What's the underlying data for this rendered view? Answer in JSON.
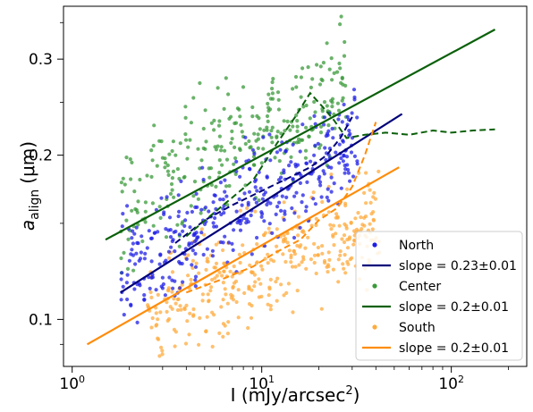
{
  "chart_data": {
    "type": "scatter",
    "xlabel": "I (mJy/arcsec",
    "xlabel_sup": "2",
    "xlabel_close": ")",
    "ylabel": "a",
    "ylabel_sub": "align",
    "ylabel_unit": "(μm)",
    "xscale": "log",
    "yscale": "log",
    "xlim": [
      0.9,
      250
    ],
    "ylim": [
      0.082,
      0.375
    ],
    "x_ticks": [
      {
        "value": 1,
        "label": "10",
        "exp": "0"
      },
      {
        "value": 10,
        "label": "10",
        "exp": "1"
      },
      {
        "value": 100,
        "label": "10",
        "exp": "2"
      }
    ],
    "y_ticks": [
      {
        "value": 0.1,
        "label": "0.1"
      },
      {
        "value": 0.2,
        "label": "0.2"
      },
      {
        "value": 0.3,
        "label": "0.3"
      }
    ],
    "grid": false,
    "legend_position": "lower-right",
    "series": [
      {
        "name": "North",
        "color": "#1f1fe6",
        "fit_label": "slope = 0.23±0.01",
        "fit_color": "#00007a",
        "fit_x": [
          1.8,
          55
        ],
        "fit_y": [
          0.112,
          0.238
        ],
        "binned_x": [
          3.5,
          5,
          7,
          10,
          14,
          18,
          22,
          26,
          30
        ],
        "binned_y": [
          0.138,
          0.152,
          0.162,
          0.172,
          0.182,
          0.19,
          0.2,
          0.215,
          0.235
        ],
        "cloud": {
          "x_range": [
            1.8,
            32
          ],
          "center_y": [
            0.12,
            0.215
          ],
          "spread": 0.14,
          "count": 380
        }
      },
      {
        "name": "Center",
        "color": "#3a9a3a",
        "fit_label": "slope = 0.2±0.01",
        "fit_color": "#0a600a",
        "fit_x": [
          1.5,
          170
        ],
        "fit_y": [
          0.14,
          0.34
        ],
        "binned_x": [
          4,
          6,
          9,
          12,
          15,
          18,
          21,
          24,
          28,
          35,
          45,
          60,
          80,
          100,
          130,
          170
        ],
        "binned_y": [
          0.142,
          0.16,
          0.18,
          0.21,
          0.235,
          0.26,
          0.245,
          0.232,
          0.215,
          0.218,
          0.22,
          0.218,
          0.222,
          0.22,
          0.222,
          0.223
        ],
        "cloud": {
          "x_range": [
            1.8,
            28
          ],
          "center_y": [
            0.16,
            0.27
          ],
          "spread": 0.16,
          "count": 300
        }
      },
      {
        "name": "South",
        "color": "#ffab3d",
        "fit_label": "slope = 0.2±0.01",
        "fit_color": "#ff8c0a",
        "fit_x": [
          1.2,
          53
        ],
        "fit_y": [
          0.09,
          0.19
        ],
        "binned_x": [
          4,
          6,
          9,
          12,
          16,
          20,
          25,
          30,
          35,
          40
        ],
        "binned_y": [
          0.112,
          0.118,
          0.125,
          0.133,
          0.14,
          0.152,
          0.16,
          0.175,
          0.2,
          0.23
        ],
        "cloud": {
          "x_range": [
            2.5,
            42
          ],
          "center_y": [
            0.1,
            0.155
          ],
          "spread": 0.14,
          "count": 380
        }
      }
    ]
  }
}
